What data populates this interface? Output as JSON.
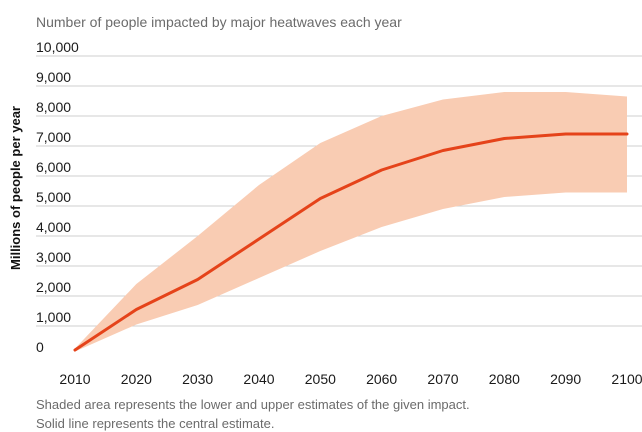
{
  "colors": {
    "band": "#f9ccb3",
    "line": "#e5431a",
    "grid": "#cfcfcf",
    "muted_text": "#6b6b6b"
  },
  "chart_data": {
    "type": "area",
    "title": "Number of people impacted by major heatwaves each year",
    "ylabel": "Millions of people per year",
    "xlabel": "",
    "x": [
      2010,
      2020,
      2030,
      2040,
      2050,
      2060,
      2070,
      2080,
      2090,
      2100
    ],
    "x_tick_labels": [
      "2010",
      "2020",
      "2030",
      "2040",
      "2050",
      "2060",
      "2070",
      "2080",
      "2090",
      "2100"
    ],
    "y_ticks": [
      0,
      1000,
      2000,
      3000,
      4000,
      5000,
      6000,
      7000,
      8000,
      9000,
      10000
    ],
    "y_tick_labels": [
      "0",
      "1,000",
      "2,000",
      "3,000",
      "4,000",
      "5,000",
      "6,000",
      "7,000",
      "8,000",
      "9,000",
      "10,000"
    ],
    "ylim": [
      0,
      10000
    ],
    "xlim": [
      2010,
      2100
    ],
    "grid": true,
    "series": [
      {
        "role": "central",
        "values": [
          200,
          1550,
          2550,
          3900,
          5250,
          6200,
          6850,
          7250,
          7400,
          7400
        ]
      },
      {
        "role": "lower",
        "values": [
          150,
          1050,
          1700,
          2600,
          3500,
          4300,
          4900,
          5300,
          5450,
          5450
        ]
      },
      {
        "role": "upper",
        "values": [
          250,
          2400,
          4000,
          5700,
          7100,
          8000,
          8550,
          8800,
          8800,
          8650
        ]
      }
    ],
    "notes": [
      "Shaded area represents the lower and upper estimates of the given impact.",
      "Solid line represents the central estimate."
    ]
  }
}
